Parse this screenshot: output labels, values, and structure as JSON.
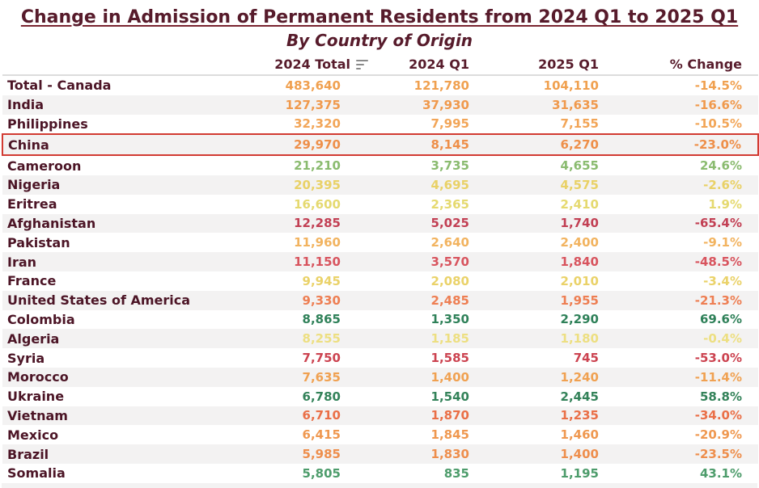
{
  "title": "Change in Admission of Permanent Residents from 2024 Q1 to 2025 Q1",
  "subtitle": "By Country of Origin",
  "table": {
    "headers": {
      "country": "",
      "total_2024": "2024 Total",
      "q1_2024": "2024 Q1",
      "q1_2025": "2025 Q1",
      "pct_change": "% Change"
    },
    "sort_icon": "sort-descending-icon",
    "rows": [
      {
        "country": "Total - Canada",
        "total_2024": "483,640",
        "q1_2024": "121,780",
        "q1_2025": "104,110",
        "pct_change": "-14.5%",
        "color": "#F0A04F",
        "highlighted": false
      },
      {
        "country": "India",
        "total_2024": "127,375",
        "q1_2024": "37,930",
        "q1_2025": "31,635",
        "pct_change": "-16.6%",
        "color": "#F0994C",
        "highlighted": false
      },
      {
        "country": "Philippines",
        "total_2024": "32,320",
        "q1_2024": "7,995",
        "q1_2025": "7,155",
        "pct_change": "-10.5%",
        "color": "#F2A557",
        "highlighted": false
      },
      {
        "country": "China",
        "total_2024": "29,970",
        "q1_2024": "8,145",
        "q1_2025": "6,270",
        "pct_change": "-23.0%",
        "color": "#EE8F49",
        "highlighted": true
      },
      {
        "country": "Cameroon",
        "total_2024": "21,210",
        "q1_2024": "3,735",
        "q1_2025": "4,655",
        "pct_change": "24.6%",
        "color": "#8ABB6F",
        "highlighted": false
      },
      {
        "country": "Nigeria",
        "total_2024": "20,395",
        "q1_2024": "4,695",
        "q1_2025": "4,575",
        "pct_change": "-2.6%",
        "color": "#E9D166",
        "highlighted": false
      },
      {
        "country": "Eritrea",
        "total_2024": "16,600",
        "q1_2024": "2,365",
        "q1_2025": "2,410",
        "pct_change": "1.9%",
        "color": "#E5D96F",
        "highlighted": false
      },
      {
        "country": "Afghanistan",
        "total_2024": "12,285",
        "q1_2024": "5,025",
        "q1_2025": "1,740",
        "pct_change": "-65.4%",
        "color": "#C23F53",
        "highlighted": false
      },
      {
        "country": "Pakistan",
        "total_2024": "11,960",
        "q1_2024": "2,640",
        "q1_2025": "2,400",
        "pct_change": "-9.1%",
        "color": "#F2B35F",
        "highlighted": false
      },
      {
        "country": "Iran",
        "total_2024": "11,150",
        "q1_2024": "3,570",
        "q1_2025": "1,840",
        "pct_change": "-48.5%",
        "color": "#D8545E",
        "highlighted": false
      },
      {
        "country": "France",
        "total_2024": "9,945",
        "q1_2024": "2,080",
        "q1_2025": "2,010",
        "pct_change": "-3.4%",
        "color": "#EAD269",
        "highlighted": false
      },
      {
        "country": "United States of America",
        "total_2024": "9,330",
        "q1_2024": "2,485",
        "q1_2025": "1,955",
        "pct_change": "-21.3%",
        "color": "#EE7E52",
        "highlighted": false
      },
      {
        "country": "Colombia",
        "total_2024": "8,865",
        "q1_2024": "1,350",
        "q1_2025": "2,290",
        "pct_change": "69.6%",
        "color": "#2F8159",
        "highlighted": false
      },
      {
        "country": "Algeria",
        "total_2024": "8,255",
        "q1_2024": "1,185",
        "q1_2025": "1,180",
        "pct_change": "-0.4%",
        "color": "#EDDF81",
        "highlighted": false
      },
      {
        "country": "Syria",
        "total_2024": "7,750",
        "q1_2024": "1,585",
        "q1_2025": "745",
        "pct_change": "-53.0%",
        "color": "#CC4350",
        "highlighted": false
      },
      {
        "country": "Morocco",
        "total_2024": "7,635",
        "q1_2024": "1,400",
        "q1_2025": "1,240",
        "pct_change": "-11.4%",
        "color": "#F0A151",
        "highlighted": false
      },
      {
        "country": "Ukraine",
        "total_2024": "6,780",
        "q1_2024": "1,540",
        "q1_2025": "2,445",
        "pct_change": "58.8%",
        "color": "#338259",
        "highlighted": false
      },
      {
        "country": "Vietnam",
        "total_2024": "6,710",
        "q1_2024": "1,870",
        "q1_2025": "1,235",
        "pct_change": "-34.0%",
        "color": "#EA6F47",
        "highlighted": false
      },
      {
        "country": "Mexico",
        "total_2024": "6,415",
        "q1_2024": "1,845",
        "q1_2025": "1,460",
        "pct_change": "-20.9%",
        "color": "#EF9850",
        "highlighted": false
      },
      {
        "country": "Brazil",
        "total_2024": "5,985",
        "q1_2024": "1,830",
        "q1_2025": "1,400",
        "pct_change": "-23.5%",
        "color": "#EE8E4C",
        "highlighted": false
      },
      {
        "country": "Somalia",
        "total_2024": "5,805",
        "q1_2024": "835",
        "q1_2025": "1,195",
        "pct_change": "43.1%",
        "color": "#4D9C6B",
        "highlighted": false
      }
    ]
  },
  "colors": {
    "title_text": "#571B2B",
    "row_label_text": "#4C1526",
    "row_alt_background": "#F3F2F2",
    "highlight_border": "#D23B32",
    "header_divider": "#DCDCDC"
  },
  "chart_data": {
    "type": "table",
    "title": "Change in Admission of Permanent Residents from 2024 Q1 to 2025 Q1",
    "subtitle": "By Country of Origin",
    "columns": [
      "Country",
      "2024 Total",
      "2024 Q1",
      "2025 Q1",
      "% Change"
    ],
    "sorted_by": "2024 Total descending",
    "highlighted_row": "China",
    "rows": [
      {
        "country": "Total - Canada",
        "total_2024": 483640,
        "q1_2024": 121780,
        "q1_2025": 104110,
        "pct_change": -14.5
      },
      {
        "country": "India",
        "total_2024": 127375,
        "q1_2024": 37930,
        "q1_2025": 31635,
        "pct_change": -16.6
      },
      {
        "country": "Philippines",
        "total_2024": 32320,
        "q1_2024": 7995,
        "q1_2025": 7155,
        "pct_change": -10.5
      },
      {
        "country": "China",
        "total_2024": 29970,
        "q1_2024": 8145,
        "q1_2025": 6270,
        "pct_change": -23.0
      },
      {
        "country": "Cameroon",
        "total_2024": 21210,
        "q1_2024": 3735,
        "q1_2025": 4655,
        "pct_change": 24.6
      },
      {
        "country": "Nigeria",
        "total_2024": 20395,
        "q1_2024": 4695,
        "q1_2025": 4575,
        "pct_change": -2.6
      },
      {
        "country": "Eritrea",
        "total_2024": 16600,
        "q1_2024": 2365,
        "q1_2025": 2410,
        "pct_change": 1.9
      },
      {
        "country": "Afghanistan",
        "total_2024": 12285,
        "q1_2024": 5025,
        "q1_2025": 1740,
        "pct_change": -65.4
      },
      {
        "country": "Pakistan",
        "total_2024": 11960,
        "q1_2024": 2640,
        "q1_2025": 2400,
        "pct_change": -9.1
      },
      {
        "country": "Iran",
        "total_2024": 11150,
        "q1_2024": 3570,
        "q1_2025": 1840,
        "pct_change": -48.5
      },
      {
        "country": "France",
        "total_2024": 9945,
        "q1_2024": 2080,
        "q1_2025": 2010,
        "pct_change": -3.4
      },
      {
        "country": "United States of America",
        "total_2024": 9330,
        "q1_2024": 2485,
        "q1_2025": 1955,
        "pct_change": -21.3
      },
      {
        "country": "Colombia",
        "total_2024": 8865,
        "q1_2024": 1350,
        "q1_2025": 2290,
        "pct_change": 69.6
      },
      {
        "country": "Algeria",
        "total_2024": 8255,
        "q1_2024": 1185,
        "q1_2025": 1180,
        "pct_change": -0.4
      },
      {
        "country": "Syria",
        "total_2024": 7750,
        "q1_2024": 1585,
        "q1_2025": 745,
        "pct_change": -53.0
      },
      {
        "country": "Morocco",
        "total_2024": 7635,
        "q1_2024": 1400,
        "q1_2025": 1240,
        "pct_change": -11.4
      },
      {
        "country": "Ukraine",
        "total_2024": 6780,
        "q1_2024": 1540,
        "q1_2025": 2445,
        "pct_change": 58.8
      },
      {
        "country": "Vietnam",
        "total_2024": 6710,
        "q1_2024": 1870,
        "q1_2025": 1235,
        "pct_change": -34.0
      },
      {
        "country": "Mexico",
        "total_2024": 6415,
        "q1_2024": 1845,
        "q1_2025": 1460,
        "pct_change": -20.9
      },
      {
        "country": "Brazil",
        "total_2024": 5985,
        "q1_2024": 1830,
        "q1_2025": 1400,
        "pct_change": -23.5
      },
      {
        "country": "Somalia",
        "total_2024": 5805,
        "q1_2024": 835,
        "q1_2025": 1195,
        "pct_change": 43.1
      }
    ]
  }
}
